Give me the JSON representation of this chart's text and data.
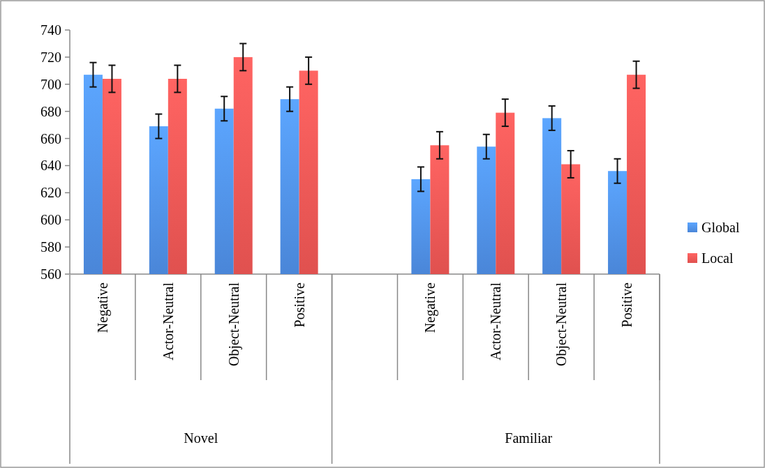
{
  "chart_data": {
    "type": "bar",
    "categories": [
      "Negative",
      "Actor-Neutral",
      "Object-Neutral",
      "Positive",
      null,
      "Negative",
      "Actor-Neutral",
      "Object-Neutral",
      "Positive"
    ],
    "series": [
      {
        "name": "Global",
        "color": "#4a86d8",
        "values": [
          707,
          669,
          682,
          689,
          null,
          630,
          654,
          675,
          636
        ],
        "errors": [
          9,
          9,
          9,
          9,
          null,
          9,
          9,
          9,
          9
        ]
      },
      {
        "name": "Local",
        "color": "#e0514f",
        "values": [
          704,
          704,
          720,
          710,
          null,
          655,
          679,
          641,
          707
        ],
        "errors": [
          10,
          10,
          10,
          10,
          null,
          10,
          10,
          10,
          10
        ]
      }
    ],
    "annotations": [
      "Novel",
      "Familiar"
    ],
    "ylim": [
      560,
      740
    ],
    "yticks": [
      560,
      580,
      600,
      620,
      640,
      660,
      680,
      700,
      720,
      740
    ],
    "grid": false,
    "legend": "right"
  }
}
